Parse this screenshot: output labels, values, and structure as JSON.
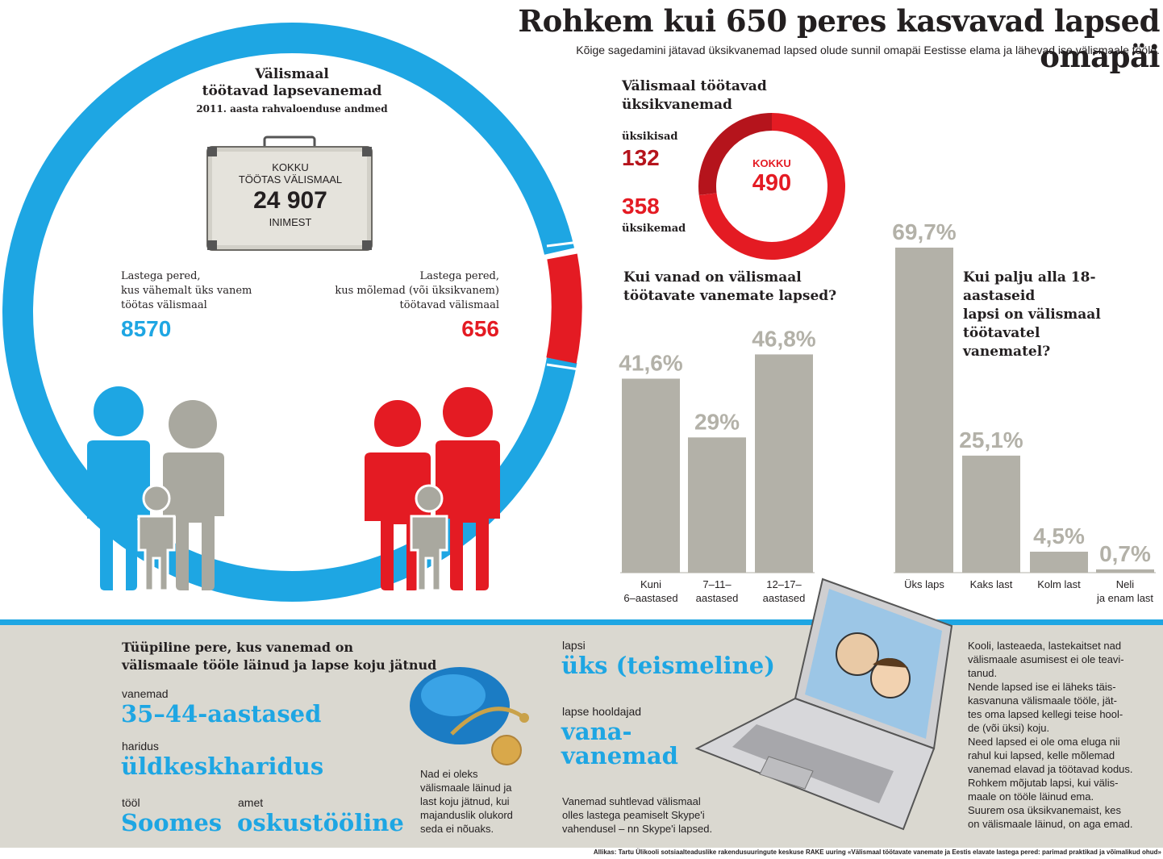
{
  "header": {
    "title": "Rohkem kui 650 peres kasvavad lapsed omapäi",
    "subtitle": "Kõige sagedamini jätavad üksikvanemad lapsed olude sunnil omapäi Eestisse elama ja lähevad ise välismaale tööle."
  },
  "ring": {
    "title_line1": "Välismaal",
    "title_line2": "töötavad lapsevanemad",
    "source_line": "2011. aasta rahvaloenduse andmed",
    "suitcase_line1": "KOKKU",
    "suitcase_line2": "TÖÖTAS VÄLISMAAL",
    "suitcase_value": "24 907",
    "suitcase_unit": "INIMEST",
    "left_label": [
      "Lastega pered,",
      "kus vähemalt üks vanem",
      "töötas välismaal"
    ],
    "left_value": "8570",
    "right_label": [
      "Lastega pered,",
      "kus mõlemad (või üksikvanem)",
      "töötavad välismaal"
    ],
    "right_value": "656",
    "colors": {
      "blue": "#1ea6e3",
      "red": "#e41b23",
      "gray": "#a9a89f"
    }
  },
  "donut": {
    "title_line1": "Välismaal töötavad",
    "title_line2": "üksikvanemad",
    "label_a": "üksikisad",
    "value_a": "132",
    "value_b": "358",
    "label_b": "üksikemad",
    "center_label": "KOKKU",
    "center_value": "490"
  },
  "chart_data": [
    {
      "type": "bar",
      "title": "Kui vanad on välismaal töötavate vanemate lapsed?",
      "categories": [
        "Kuni 6–aastased",
        "7–11– aastased",
        "12–17– aastased"
      ],
      "category_lines": [
        [
          "Kuni",
          "6–aastased"
        ],
        [
          "7–11–",
          "aastased"
        ],
        [
          "12–17–",
          "aastased"
        ]
      ],
      "values": [
        41.6,
        29,
        46.8
      ],
      "value_labels": [
        "41,6%",
        "29%",
        "46,8%"
      ],
      "ylim": [
        0,
        70
      ]
    },
    {
      "type": "bar",
      "title": "Kui palju alla 18-aastaseid lapsi on välismaal töötavatel vanematel?",
      "categories": [
        "Üks laps",
        "Kaks last",
        "Kolm last",
        "Neli ja enam last"
      ],
      "category_lines": [
        [
          "Üks laps"
        ],
        [
          "Kaks last"
        ],
        [
          "Kolm last"
        ],
        [
          "Neli",
          "ja enam last"
        ]
      ],
      "values": [
        69.7,
        25.1,
        4.5,
        0.7
      ],
      "value_labels": [
        "69,7%",
        "25,1%",
        "4,5%",
        "0,7%"
      ],
      "ylim": [
        0,
        70
      ]
    }
  ],
  "chart1_title_lines": [
    "Kui vanad on välismaal",
    "töötavate vanemate lapsed?"
  ],
  "chart2_title_lines": [
    "Kui palju alla 18-aastaseid",
    "lapsi on välismaal töötavatel",
    "vanematel?"
  ],
  "typical": {
    "title_lines": [
      "Tüüpiline pere, kus vanemad on",
      "välismaale tööle läinud ja lapse koju jätnud"
    ],
    "parents_label": "vanemad",
    "parents_value": "35–44-aastased",
    "edu_label": "haridus",
    "edu_value": "üldkeskharidus",
    "work_label": "tööl",
    "work_value": "Soomes",
    "job_label": "amet",
    "job_value": "oskustööline",
    "purse_text": [
      "Nad ei oleks",
      "välismaale läinud ja",
      "last koju jätnud, kui",
      "majanduslik olukord",
      "seda ei nõuaks."
    ],
    "child_label": "lapsi",
    "child_value": "üks (teismeline)",
    "carer_label": "lapse hooldajad",
    "carer_value_lines": [
      "vana-",
      "vanemad"
    ],
    "skype_text": [
      "Vanemad suhtlevad välismaal",
      "olles lastega peamiselt Skype'i",
      "vahendusel – nn Skype'i lapsed."
    ],
    "right_text": [
      "Kooli, lasteaeda, lastekaitset nad",
      "välismaale asumisest ei ole teavi-",
      "tanud.",
      "Nende lapsed ise ei läheks täis-",
      "kasvanuna välismaale tööle, jät-",
      "tes oma lapsed kellegi teise hool-",
      "de (või üksi) koju.",
      "Need lapsed ei ole oma eluga nii",
      "rahul kui lapsed, kelle mõlemad",
      "vanemad elavad ja töötavad kodus.",
      "Rohkem mõjutab lapsi, kui välis-",
      "maale on tööle läinud ema.",
      "Suurem osa üksikvanemaist, kes",
      "on välismaale läinud, on aga emad."
    ]
  },
  "footer": {
    "source": "Allikas: Tartu Ülikooli sotsiaalteaduslike rakendusuuringute keskuse RAKE uuring «Välismaal töötavate vanemate ja Eestis elavate lastega pered: parimad praktikad ja võimalikud ohud»"
  }
}
